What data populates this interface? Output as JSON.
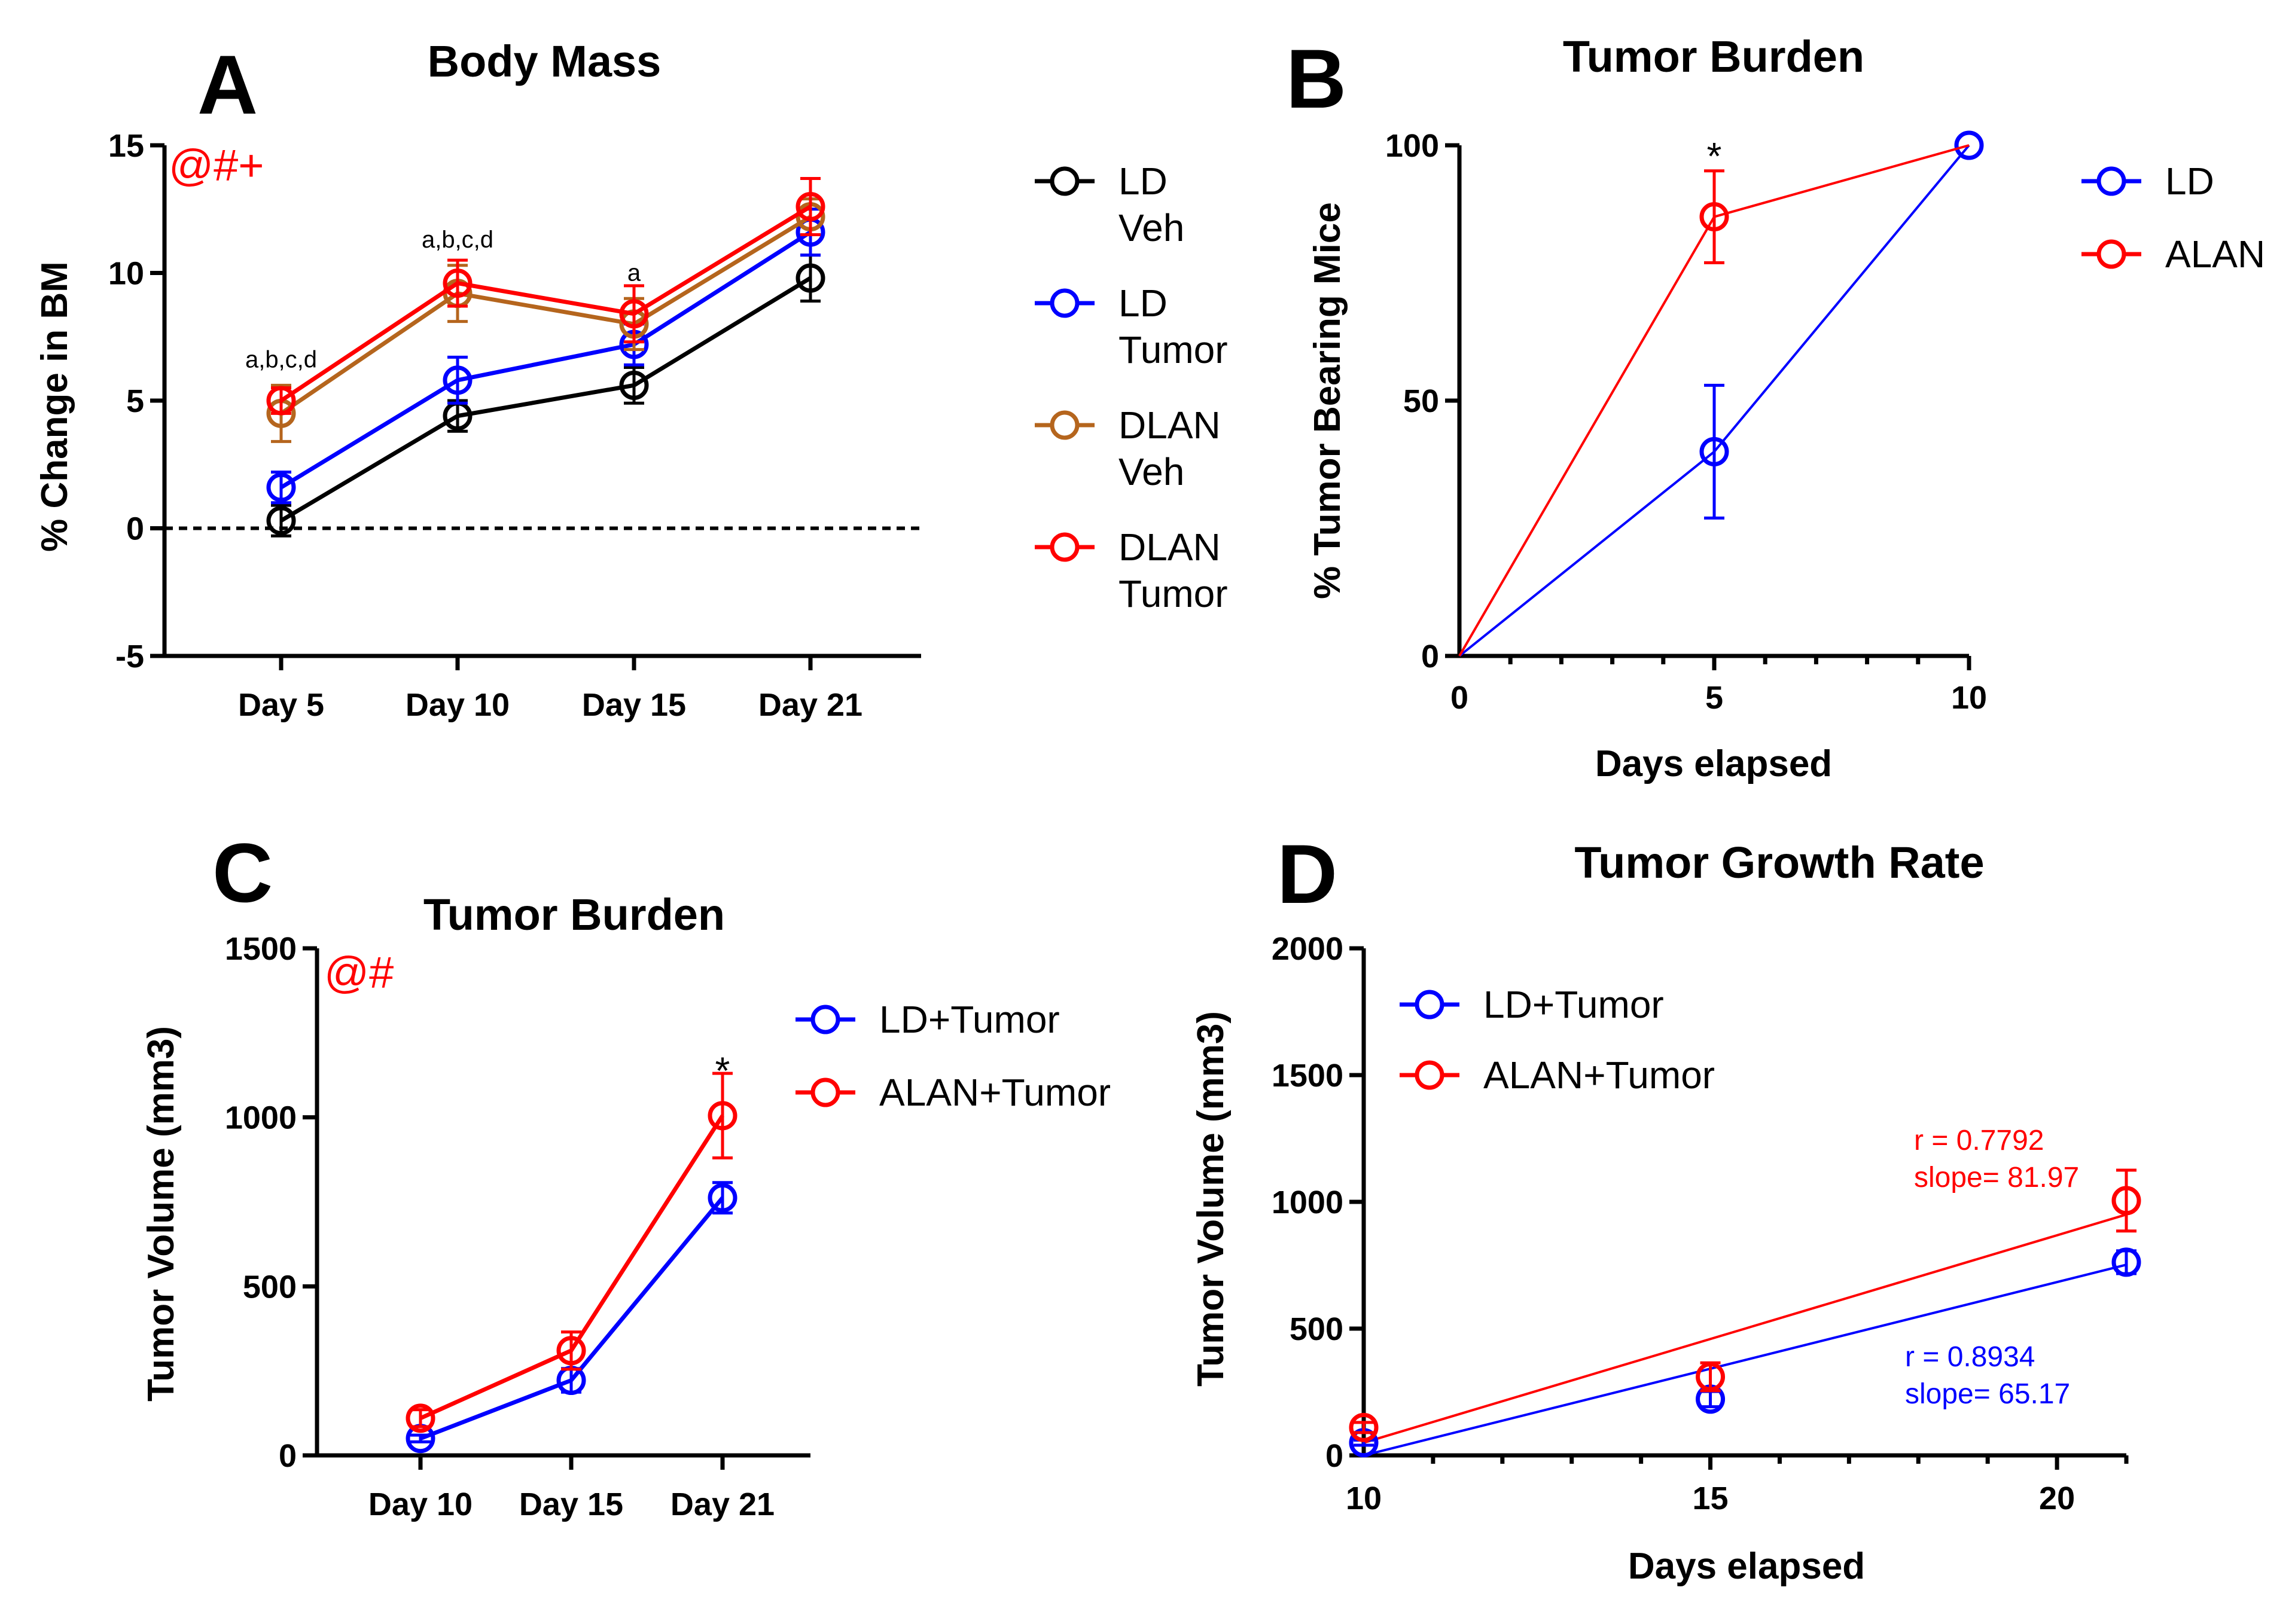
{
  "chart_data": [
    {
      "id": "A",
      "panel_label": "A",
      "type": "line",
      "title": "Body Mass",
      "xlabel": "",
      "ylabel": "% Change in BM",
      "categories": [
        "Day 5",
        "Day 10",
        "Day 15",
        "Day 21"
      ],
      "ylim": [
        -5,
        15
      ],
      "yticks": [
        "-5",
        "0",
        "5",
        "10",
        "15"
      ],
      "reference_line": 0,
      "series": [
        {
          "name": "LD Veh",
          "legend_lines": [
            "LD",
            "Veh"
          ],
          "color": "#000000",
          "values": [
            0.3,
            4.4,
            5.6,
            9.8
          ],
          "errors": [
            0.6,
            0.6,
            0.7,
            0.9
          ]
        },
        {
          "name": "LD Tumor",
          "legend_lines": [
            "LD",
            "Tumor"
          ],
          "color": "#0000ff",
          "values": [
            1.6,
            5.8,
            7.2,
            11.6
          ],
          "errors": [
            0.6,
            0.9,
            0.8,
            0.9
          ]
        },
        {
          "name": "DLAN Veh",
          "legend_lines": [
            "DLAN",
            "Veh"
          ],
          "color": "#b5651d",
          "values": [
            4.5,
            9.2,
            8.0,
            12.2
          ],
          "errors": [
            1.1,
            1.1,
            1.0,
            0.7
          ]
        },
        {
          "name": "DLAN Tumor",
          "legend_lines": [
            "DLAN",
            "Tumor"
          ],
          "color": "#ff0000",
          "values": [
            5.0,
            9.6,
            8.4,
            12.6
          ],
          "errors": [
            0.5,
            0.9,
            1.1,
            1.1
          ]
        }
      ],
      "point_annotations": [
        {
          "category": "Day 5",
          "text": "a,b,c,d",
          "y": 6.3
        },
        {
          "category": "Day 10",
          "text": "a,b,c,d",
          "y": 11.0
        },
        {
          "category": "Day 15",
          "text": "a",
          "y": 9.7
        }
      ],
      "corner_annotation": {
        "text": "@#+",
        "color": "#ff0000"
      },
      "legend_position": "right"
    },
    {
      "id": "B",
      "panel_label": "B",
      "type": "line",
      "title": "Tumor Burden",
      "xlabel": "Days elapsed",
      "ylabel": "% Tumor Bearing Mice",
      "xlim": [
        0,
        10
      ],
      "ylim": [
        0,
        100
      ],
      "xticks": [
        "0",
        "5",
        "10"
      ],
      "yticks": [
        "0",
        "50",
        "100"
      ],
      "series": [
        {
          "name": "LD",
          "color": "#0000ff",
          "x": [
            0,
            5,
            10
          ],
          "values": [
            0,
            40,
            100
          ],
          "errors": [
            0,
            13,
            0
          ],
          "markers": [
            1,
            2
          ]
        },
        {
          "name": "ALAN",
          "color": "#ff0000",
          "x": [
            0,
            5,
            10
          ],
          "values": [
            0,
            86,
            100
          ],
          "errors": [
            0,
            9,
            0
          ],
          "markers": [
            1
          ]
        }
      ],
      "star_annotations": [
        {
          "x": 5,
          "y": 100,
          "text": "*"
        }
      ],
      "legend_position": "right"
    },
    {
      "id": "C",
      "panel_label": "C",
      "type": "line",
      "title": "Tumor Burden",
      "xlabel": "",
      "ylabel": "Tumor Volume (mm3)",
      "categories": [
        "Day 10",
        "Day 15",
        "Day 21"
      ],
      "ylim": [
        0,
        1500
      ],
      "yticks": [
        "0",
        "500",
        "1000",
        "1500"
      ],
      "series": [
        {
          "name": "LD+Tumor",
          "color": "#0000ff",
          "values": [
            50,
            222,
            762
          ],
          "errors": [
            10,
            35,
            45
          ]
        },
        {
          "name": "ALAN+Tumor",
          "color": "#ff0000",
          "values": [
            110,
            310,
            1005
          ],
          "errors": [
            25,
            55,
            125
          ]
        }
      ],
      "star_annotations": [
        {
          "category": "Day 21",
          "y": 1170,
          "text": "*"
        }
      ],
      "corner_annotation": {
        "text": "@#",
        "color": "#ff0000"
      },
      "legend_position": "top-right"
    },
    {
      "id": "D",
      "panel_label": "D",
      "type": "scatter",
      "title": "Tumor Growth Rate",
      "xlabel": "Days elapsed",
      "ylabel": "Tumor Volume (mm3)",
      "xlim": [
        10,
        21
      ],
      "ylim": [
        0,
        2000
      ],
      "xticks": [
        "10",
        "15",
        "20"
      ],
      "yticks": [
        "0",
        "500",
        "1000",
        "1500",
        "2000"
      ],
      "series": [
        {
          "name": "LD+Tumor",
          "color": "#0000ff",
          "x": [
            10,
            15,
            21
          ],
          "values": [
            50,
            222,
            762
          ],
          "errors": [
            10,
            30,
            45
          ],
          "fit": {
            "x": [
              10,
              21
            ],
            "y": [
              0,
              752
            ]
          },
          "r_text": "r = 0.8934",
          "slope_text": "slope= 65.17"
        },
        {
          "name": "ALAN+Tumor",
          "color": "#ff0000",
          "x": [
            10,
            15,
            21
          ],
          "values": [
            110,
            310,
            1005
          ],
          "errors": [
            20,
            55,
            120
          ],
          "fit": {
            "x": [
              10,
              21
            ],
            "y": [
              50,
              950
            ]
          },
          "r_text": "r = 0.7792",
          "slope_text": "slope= 81.97"
        }
      ],
      "legend_position": "top-left"
    }
  ]
}
